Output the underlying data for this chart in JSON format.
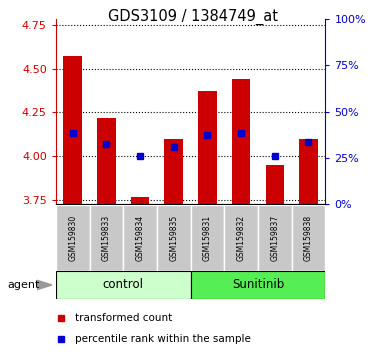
{
  "title": "GDS3109 / 1384749_at",
  "samples": [
    "GSM159830",
    "GSM159833",
    "GSM159834",
    "GSM159835",
    "GSM159831",
    "GSM159832",
    "GSM159837",
    "GSM159838"
  ],
  "red_values": [
    4.57,
    4.22,
    3.77,
    4.1,
    4.37,
    4.44,
    3.95,
    4.1
  ],
  "blue_values": [
    4.13,
    4.07,
    4.0,
    4.05,
    4.12,
    4.13,
    4.0,
    4.08
  ],
  "red_base": 3.73,
  "ylim": [
    3.73,
    4.78
  ],
  "yticks_left": [
    3.75,
    4.0,
    4.25,
    4.5,
    4.75
  ],
  "right_ytick_percents": [
    0,
    25,
    50,
    75,
    100
  ],
  "groups": [
    {
      "label": "control",
      "indices": [
        0,
        1,
        2,
        3
      ],
      "color": "#ccffcc"
    },
    {
      "label": "Sunitinib",
      "indices": [
        4,
        5,
        6,
        7
      ],
      "color": "#55ee55"
    }
  ],
  "bar_width": 0.55,
  "blue_marker_size": 5,
  "bar_color": "#cc0000",
  "blue_color": "#0000cc",
  "agent_label": "agent",
  "legend_items": [
    {
      "color": "#cc0000",
      "label": "transformed count"
    },
    {
      "color": "#0000cc",
      "label": "percentile rank within the sample"
    }
  ],
  "left_label_color": "#cc0000",
  "right_label_color": "#0000cc",
  "sample_bg_color": "#c8c8c8",
  "outer_border_color": "#000000"
}
